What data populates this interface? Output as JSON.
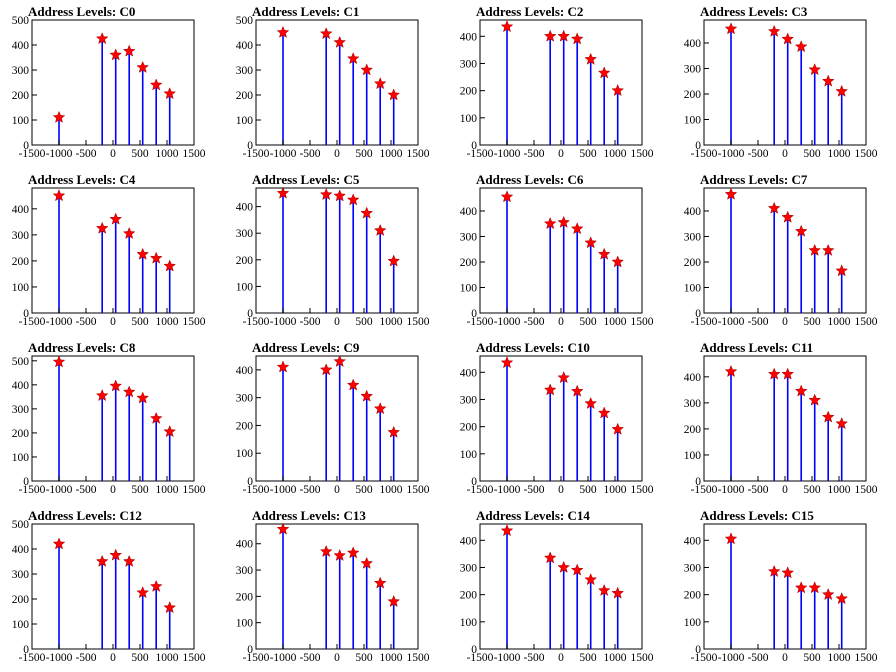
{
  "colors": {
    "bars": "#0000ff",
    "markers": "#ff0000",
    "axes": "#000000",
    "background": "#ffffff"
  },
  "chart_data": [
    {
      "type": "bar",
      "title": "Address Levels: C0",
      "xlim": [
        -1500,
        1500
      ],
      "ylim": [
        0,
        500
      ],
      "yticks": [
        0,
        100,
        200,
        300,
        400,
        500
      ],
      "xticks": [
        -1500,
        -1000,
        -500,
        0,
        500,
        1000,
        1500
      ],
      "x": [
        -1000,
        -200,
        50,
        300,
        550,
        800,
        1050
      ],
      "values": [
        110,
        425,
        360,
        375,
        310,
        240,
        205
      ],
      "markers": [
        {
          "x": -1000,
          "y": 110
        },
        {
          "x": -200,
          "y": 425
        },
        {
          "x": 50,
          "y": 360
        },
        {
          "x": 300,
          "y": 375
        },
        {
          "x": 550,
          "y": 310
        },
        {
          "x": 800,
          "y": 240
        },
        {
          "x": 1050,
          "y": 205
        }
      ]
    },
    {
      "type": "bar",
      "title": "Address Levels: C1",
      "xlim": [
        -1500,
        1500
      ],
      "ylim": [
        0,
        500
      ],
      "yticks": [
        0,
        100,
        200,
        300,
        400,
        500
      ],
      "xticks": [
        -1500,
        -1000,
        -500,
        0,
        500,
        1000,
        1500
      ],
      "x": [
        -1000,
        -200,
        50,
        300,
        550,
        800,
        1050
      ],
      "values": [
        450,
        445,
        410,
        345,
        300,
        245,
        200
      ],
      "markers": [
        {
          "x": -1000,
          "y": 450
        },
        {
          "x": -200,
          "y": 445
        },
        {
          "x": 50,
          "y": 410
        },
        {
          "x": 300,
          "y": 345
        },
        {
          "x": 550,
          "y": 300
        },
        {
          "x": 800,
          "y": 245
        },
        {
          "x": 1050,
          "y": 200
        }
      ]
    },
    {
      "type": "bar",
      "title": "Address Levels: C2",
      "xlim": [
        -1500,
        1500
      ],
      "ylim": [
        0,
        460
      ],
      "yticks": [
        0,
        100,
        200,
        300,
        400
      ],
      "xticks": [
        -1500,
        -1000,
        -500,
        0,
        500,
        1000,
        1500
      ],
      "x": [
        -1000,
        -200,
        50,
        300,
        550,
        800,
        1050
      ],
      "values": [
        435,
        400,
        400,
        390,
        315,
        265,
        200
      ],
      "markers": [
        {
          "x": -1000,
          "y": 435
        },
        {
          "x": -200,
          "y": 400
        },
        {
          "x": 50,
          "y": 400
        },
        {
          "x": 300,
          "y": 390
        },
        {
          "x": 550,
          "y": 315
        },
        {
          "x": 800,
          "y": 265
        },
        {
          "x": 1050,
          "y": 200
        }
      ]
    },
    {
      "type": "bar",
      "title": "Address Levels: C3",
      "xlim": [
        -1500,
        1500
      ],
      "ylim": [
        0,
        490
      ],
      "yticks": [
        0,
        100,
        200,
        300,
        400
      ],
      "xticks": [
        -1500,
        -1000,
        -500,
        0,
        500,
        1000,
        1500
      ],
      "x": [
        -1000,
        -200,
        50,
        300,
        550,
        800,
        1050
      ],
      "values": [
        455,
        445,
        415,
        385,
        295,
        250,
        210
      ],
      "markers": [
        {
          "x": -1000,
          "y": 455
        },
        {
          "x": -200,
          "y": 445
        },
        {
          "x": 50,
          "y": 415
        },
        {
          "x": 300,
          "y": 385
        },
        {
          "x": 550,
          "y": 295
        },
        {
          "x": 800,
          "y": 250
        },
        {
          "x": 1050,
          "y": 210
        }
      ]
    },
    {
      "type": "bar",
      "title": "Address Levels: C4",
      "xlim": [
        -1500,
        1500
      ],
      "ylim": [
        0,
        480
      ],
      "yticks": [
        0,
        100,
        200,
        300,
        400
      ],
      "xticks": [
        -1500,
        -1000,
        -500,
        0,
        500,
        1000,
        1500
      ],
      "x": [
        -1000,
        -200,
        50,
        300,
        550,
        800,
        1050
      ],
      "values": [
        450,
        325,
        360,
        305,
        225,
        210,
        180
      ],
      "markers": [
        {
          "x": -1000,
          "y": 450
        },
        {
          "x": -200,
          "y": 325
        },
        {
          "x": 50,
          "y": 360
        },
        {
          "x": 300,
          "y": 305
        },
        {
          "x": 550,
          "y": 225
        },
        {
          "x": 800,
          "y": 210
        },
        {
          "x": 1050,
          "y": 180
        }
      ]
    },
    {
      "type": "bar",
      "title": "Address Levels: C5",
      "xlim": [
        -1500,
        1500
      ],
      "ylim": [
        0,
        470
      ],
      "yticks": [
        0,
        100,
        200,
        300,
        400
      ],
      "xticks": [
        -1500,
        -1000,
        -500,
        0,
        500,
        1000,
        1500
      ],
      "x": [
        -1000,
        -200,
        50,
        300,
        550,
        800,
        1050
      ],
      "values": [
        450,
        445,
        440,
        425,
        375,
        310,
        195
      ],
      "markers": [
        {
          "x": -1000,
          "y": 450
        },
        {
          "x": -200,
          "y": 445
        },
        {
          "x": 50,
          "y": 440
        },
        {
          "x": 300,
          "y": 425
        },
        {
          "x": 550,
          "y": 375
        },
        {
          "x": 800,
          "y": 310
        },
        {
          "x": 1050,
          "y": 195
        }
      ]
    },
    {
      "type": "bar",
      "title": "Address Levels: C6",
      "xlim": [
        -1500,
        1500
      ],
      "ylim": [
        0,
        490
      ],
      "yticks": [
        0,
        100,
        200,
        300,
        400
      ],
      "xticks": [
        -1500,
        -1000,
        -500,
        0,
        500,
        1000,
        1500
      ],
      "x": [
        -1000,
        -200,
        50,
        300,
        550,
        800,
        1050
      ],
      "values": [
        455,
        350,
        355,
        330,
        275,
        230,
        200
      ],
      "markers": [
        {
          "x": -1000,
          "y": 455
        },
        {
          "x": -200,
          "y": 350
        },
        {
          "x": 50,
          "y": 355
        },
        {
          "x": 300,
          "y": 330
        },
        {
          "x": 550,
          "y": 275
        },
        {
          "x": 800,
          "y": 230
        },
        {
          "x": 1050,
          "y": 200
        }
      ]
    },
    {
      "type": "bar",
      "title": "Address Levels: C7",
      "xlim": [
        -1500,
        1500
      ],
      "ylim": [
        0,
        490
      ],
      "yticks": [
        0,
        100,
        200,
        300,
        400
      ],
      "xticks": [
        -1500,
        -1000,
        -500,
        0,
        500,
        1000,
        1500
      ],
      "x": [
        -1000,
        -200,
        50,
        300,
        550,
        800,
        1050
      ],
      "values": [
        465,
        410,
        375,
        320,
        245,
        245,
        165
      ],
      "markers": [
        {
          "x": -1000,
          "y": 465
        },
        {
          "x": -200,
          "y": 410
        },
        {
          "x": 50,
          "y": 375
        },
        {
          "x": 300,
          "y": 320
        },
        {
          "x": 550,
          "y": 245
        },
        {
          "x": 800,
          "y": 245
        },
        {
          "x": 1050,
          "y": 165
        }
      ]
    },
    {
      "type": "bar",
      "title": "Address Levels: C8",
      "xlim": [
        -1500,
        1500
      ],
      "ylim": [
        0,
        520
      ],
      "yticks": [
        0,
        100,
        200,
        300,
        400,
        500
      ],
      "xticks": [
        -1500,
        -1000,
        -500,
        0,
        500,
        1000,
        1500
      ],
      "x": [
        -1000,
        -200,
        50,
        300,
        550,
        800,
        1050
      ],
      "values": [
        495,
        355,
        395,
        370,
        345,
        260,
        205
      ],
      "markers": [
        {
          "x": -1000,
          "y": 495
        },
        {
          "x": -200,
          "y": 355
        },
        {
          "x": 50,
          "y": 395
        },
        {
          "x": 300,
          "y": 370
        },
        {
          "x": 550,
          "y": 345
        },
        {
          "x": 800,
          "y": 260
        },
        {
          "x": 1050,
          "y": 205
        }
      ]
    },
    {
      "type": "bar",
      "title": "Address Levels: C9",
      "xlim": [
        -1500,
        1500
      ],
      "ylim": [
        0,
        450
      ],
      "yticks": [
        0,
        100,
        200,
        300,
        400
      ],
      "xticks": [
        -1500,
        -1000,
        -500,
        0,
        500,
        1000,
        1500
      ],
      "x": [
        -1000,
        -200,
        50,
        300,
        550,
        800,
        1050
      ],
      "values": [
        410,
        400,
        430,
        345,
        305,
        260,
        175
      ],
      "markers": [
        {
          "x": -1000,
          "y": 410
        },
        {
          "x": -200,
          "y": 400
        },
        {
          "x": 50,
          "y": 430
        },
        {
          "x": 300,
          "y": 345
        },
        {
          "x": 550,
          "y": 305
        },
        {
          "x": 800,
          "y": 260
        },
        {
          "x": 1050,
          "y": 175
        }
      ]
    },
    {
      "type": "bar",
      "title": "Address Levels: C10",
      "xlim": [
        -1500,
        1500
      ],
      "ylim": [
        0,
        460
      ],
      "yticks": [
        0,
        100,
        200,
        300,
        400
      ],
      "xticks": [
        -1500,
        -1000,
        -500,
        0,
        500,
        1000,
        1500
      ],
      "x": [
        -1000,
        -200,
        50,
        300,
        550,
        800,
        1050
      ],
      "values": [
        435,
        335,
        380,
        330,
        285,
        250,
        190
      ],
      "markers": [
        {
          "x": -1000,
          "y": 435
        },
        {
          "x": -200,
          "y": 335
        },
        {
          "x": 50,
          "y": 380
        },
        {
          "x": 300,
          "y": 330
        },
        {
          "x": 550,
          "y": 285
        },
        {
          "x": 800,
          "y": 250
        },
        {
          "x": 1050,
          "y": 190
        }
      ]
    },
    {
      "type": "bar",
      "title": "Address Levels: C11",
      "xlim": [
        -1500,
        1500
      ],
      "ylim": [
        0,
        480
      ],
      "yticks": [
        0,
        100,
        200,
        300,
        400
      ],
      "xticks": [
        -1500,
        -1000,
        -500,
        0,
        500,
        1000,
        1500
      ],
      "x": [
        -1000,
        -200,
        50,
        300,
        550,
        800,
        1050
      ],
      "values": [
        420,
        410,
        410,
        345,
        310,
        245,
        220
      ],
      "markers": [
        {
          "x": -1000,
          "y": 420
        },
        {
          "x": -200,
          "y": 410
        },
        {
          "x": 50,
          "y": 410
        },
        {
          "x": 300,
          "y": 345
        },
        {
          "x": 550,
          "y": 310
        },
        {
          "x": 800,
          "y": 245
        },
        {
          "x": 1050,
          "y": 220
        }
      ]
    },
    {
      "type": "bar",
      "title": "Address Levels: C12",
      "xlim": [
        -1500,
        1500
      ],
      "ylim": [
        0,
        500
      ],
      "yticks": [
        0,
        100,
        200,
        300,
        400,
        500
      ],
      "xticks": [
        -1500,
        -1000,
        -500,
        0,
        500,
        1000,
        1500
      ],
      "x": [
        -1000,
        -200,
        50,
        300,
        550,
        800,
        1050
      ],
      "values": [
        420,
        350,
        375,
        350,
        225,
        250,
        165
      ],
      "markers": [
        {
          "x": -1000,
          "y": 420
        },
        {
          "x": -200,
          "y": 350
        },
        {
          "x": 50,
          "y": 375
        },
        {
          "x": 300,
          "y": 350
        },
        {
          "x": 550,
          "y": 225
        },
        {
          "x": 800,
          "y": 250
        },
        {
          "x": 1050,
          "y": 165
        }
      ]
    },
    {
      "type": "bar",
      "title": "Address Levels: C13",
      "xlim": [
        -1500,
        1500
      ],
      "ylim": [
        0,
        475
      ],
      "yticks": [
        0,
        100,
        200,
        300,
        400
      ],
      "xticks": [
        -1500,
        -1000,
        -500,
        0,
        500,
        1000,
        1500
      ],
      "x": [
        -1000,
        -200,
        50,
        300,
        550,
        800,
        1050
      ],
      "values": [
        455,
        370,
        355,
        365,
        325,
        250,
        180
      ],
      "markers": [
        {
          "x": -1000,
          "y": 455
        },
        {
          "x": -200,
          "y": 370
        },
        {
          "x": 50,
          "y": 355
        },
        {
          "x": 300,
          "y": 365
        },
        {
          "x": 550,
          "y": 325
        },
        {
          "x": 800,
          "y": 250
        },
        {
          "x": 1050,
          "y": 180
        }
      ]
    },
    {
      "type": "bar",
      "title": "Address Levels: C14",
      "xlim": [
        -1500,
        1500
      ],
      "ylim": [
        0,
        460
      ],
      "yticks": [
        0,
        100,
        200,
        300,
        400
      ],
      "xticks": [
        -1500,
        -1000,
        -500,
        0,
        500,
        1000,
        1500
      ],
      "x": [
        -1000,
        -200,
        50,
        300,
        550,
        800,
        1050
      ],
      "values": [
        435,
        335,
        300,
        290,
        255,
        215,
        205
      ],
      "markers": [
        {
          "x": -1000,
          "y": 435
        },
        {
          "x": -200,
          "y": 335
        },
        {
          "x": 50,
          "y": 300
        },
        {
          "x": 300,
          "y": 290
        },
        {
          "x": 550,
          "y": 255
        },
        {
          "x": 800,
          "y": 215
        },
        {
          "x": 1050,
          "y": 205
        }
      ]
    },
    {
      "type": "bar",
      "title": "Address Levels: C15",
      "xlim": [
        -1500,
        1500
      ],
      "ylim": [
        0,
        460
      ],
      "yticks": [
        0,
        100,
        200,
        300,
        400
      ],
      "xticks": [
        -1500,
        -1000,
        -500,
        0,
        500,
        1000,
        1500
      ],
      "x": [
        -1000,
        -200,
        50,
        300,
        550,
        800,
        1050
      ],
      "values": [
        405,
        285,
        280,
        225,
        225,
        200,
        185
      ],
      "markers": [
        {
          "x": -1000,
          "y": 405
        },
        {
          "x": -200,
          "y": 285
        },
        {
          "x": 50,
          "y": 280
        },
        {
          "x": 300,
          "y": 225
        },
        {
          "x": 550,
          "y": 225
        },
        {
          "x": 800,
          "y": 200
        },
        {
          "x": 1050,
          "y": 185
        }
      ]
    }
  ]
}
